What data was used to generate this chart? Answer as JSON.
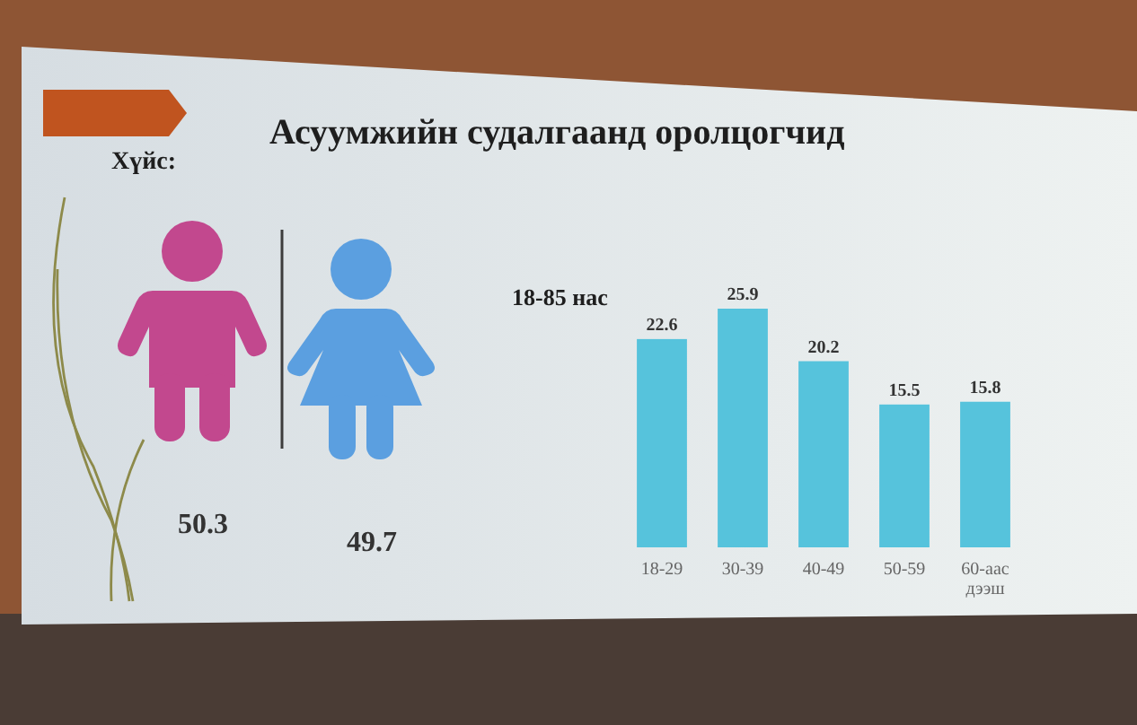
{
  "chart_data": [
    {
      "type": "other",
      "title": "Асуумжийн судалгаанд оролцогчид",
      "subtitle": "Хүйс:",
      "categories": [
        null,
        null
      ],
      "values": [
        50.3,
        49.7
      ],
      "colors": [
        "#c2488e",
        "#5b9fe0"
      ],
      "data_labels": true
    },
    {
      "type": "bar",
      "title": "18-85 нас",
      "categories": [
        "18-29",
        "30-39",
        "40-49",
        "50-59",
        "60-аас дээш"
      ],
      "values": [
        22.6,
        25.9,
        20.2,
        15.5,
        15.8
      ],
      "color": "#56c3dc",
      "data_labels": true
    }
  ]
}
